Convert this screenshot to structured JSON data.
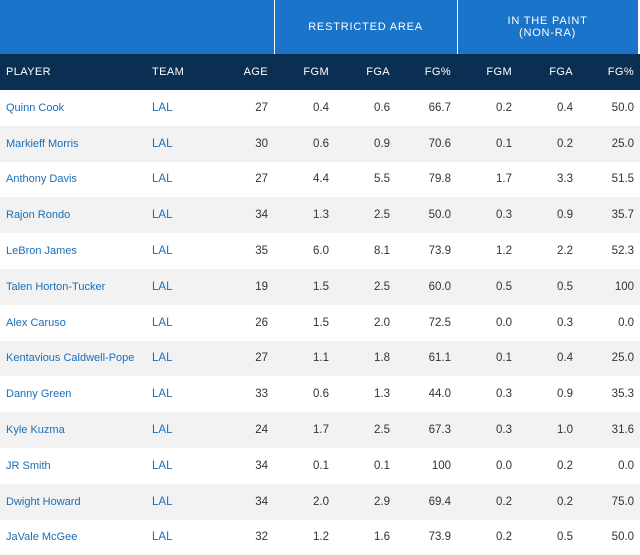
{
  "groups": {
    "restricted_area": "RESTRICTED AREA",
    "in_the_paint_line1": "IN THE PAINT",
    "in_the_paint_line2": "(NON-RA)"
  },
  "columns": [
    "PLAYER",
    "TEAM",
    "AGE",
    "FGM",
    "FGA",
    "FG%",
    "FGM",
    "FGA",
    "FG%"
  ],
  "rows": [
    {
      "player": "Quinn Cook",
      "team": "LAL",
      "age": "27",
      "ra_fgm": "0.4",
      "ra_fga": "0.6",
      "ra_pct": "66.7",
      "paint_fgm": "0.2",
      "paint_fga": "0.4",
      "paint_pct": "50.0"
    },
    {
      "player": "Markieff Morris",
      "team": "LAL",
      "age": "30",
      "ra_fgm": "0.6",
      "ra_fga": "0.9",
      "ra_pct": "70.6",
      "paint_fgm": "0.1",
      "paint_fga": "0.2",
      "paint_pct": "25.0"
    },
    {
      "player": "Anthony Davis",
      "team": "LAL",
      "age": "27",
      "ra_fgm": "4.4",
      "ra_fga": "5.5",
      "ra_pct": "79.8",
      "paint_fgm": "1.7",
      "paint_fga": "3.3",
      "paint_pct": "51.5"
    },
    {
      "player": "Rajon Rondo",
      "team": "LAL",
      "age": "34",
      "ra_fgm": "1.3",
      "ra_fga": "2.5",
      "ra_pct": "50.0",
      "paint_fgm": "0.3",
      "paint_fga": "0.9",
      "paint_pct": "35.7"
    },
    {
      "player": "LeBron James",
      "team": "LAL",
      "age": "35",
      "ra_fgm": "6.0",
      "ra_fga": "8.1",
      "ra_pct": "73.9",
      "paint_fgm": "1.2",
      "paint_fga": "2.2",
      "paint_pct": "52.3"
    },
    {
      "player": "Talen Horton-Tucker",
      "team": "LAL",
      "age": "19",
      "ra_fgm": "1.5",
      "ra_fga": "2.5",
      "ra_pct": "60.0",
      "paint_fgm": "0.5",
      "paint_fga": "0.5",
      "paint_pct": "100"
    },
    {
      "player": "Alex Caruso",
      "team": "LAL",
      "age": "26",
      "ra_fgm": "1.5",
      "ra_fga": "2.0",
      "ra_pct": "72.5",
      "paint_fgm": "0.0",
      "paint_fga": "0.3",
      "paint_pct": "0.0"
    },
    {
      "player": "Kentavious Caldwell-Pope",
      "team": "LAL",
      "age": "27",
      "ra_fgm": "1.1",
      "ra_fga": "1.8",
      "ra_pct": "61.1",
      "paint_fgm": "0.1",
      "paint_fga": "0.4",
      "paint_pct": "25.0"
    },
    {
      "player": "Danny Green",
      "team": "LAL",
      "age": "33",
      "ra_fgm": "0.6",
      "ra_fga": "1.3",
      "ra_pct": "44.0",
      "paint_fgm": "0.3",
      "paint_fga": "0.9",
      "paint_pct": "35.3"
    },
    {
      "player": "Kyle Kuzma",
      "team": "LAL",
      "age": "24",
      "ra_fgm": "1.7",
      "ra_fga": "2.5",
      "ra_pct": "67.3",
      "paint_fgm": "0.3",
      "paint_fga": "1.0",
      "paint_pct": "31.6"
    },
    {
      "player": "JR Smith",
      "team": "LAL",
      "age": "34",
      "ra_fgm": "0.1",
      "ra_fga": "0.1",
      "ra_pct": "100",
      "paint_fgm": "0.0",
      "paint_fga": "0.2",
      "paint_pct": "0.0"
    },
    {
      "player": "Dwight Howard",
      "team": "LAL",
      "age": "34",
      "ra_fgm": "2.0",
      "ra_fga": "2.9",
      "ra_pct": "69.4",
      "paint_fgm": "0.2",
      "paint_fga": "0.2",
      "paint_pct": "75.0"
    },
    {
      "player": "JaVale McGee",
      "team": "LAL",
      "age": "32",
      "ra_fgm": "1.2",
      "ra_fga": "1.6",
      "ra_pct": "73.9",
      "paint_fgm": "0.2",
      "paint_fga": "0.5",
      "paint_pct": "50.0"
    }
  ]
}
